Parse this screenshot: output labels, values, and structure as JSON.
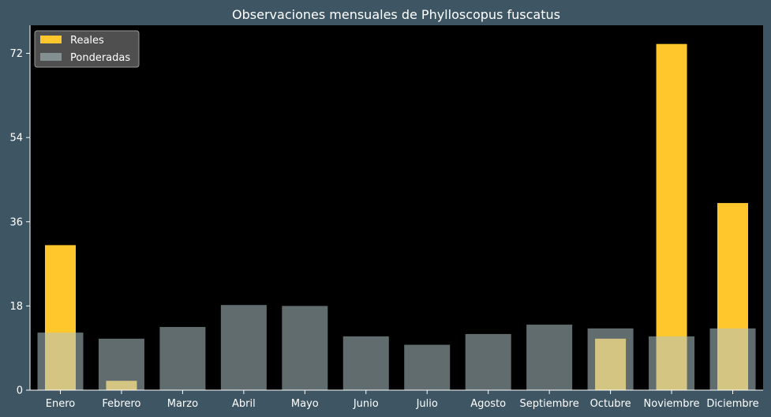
{
  "chart_data": {
    "type": "bar",
    "title": "Observaciones mensuales de Phylloscopus fuscatus",
    "categories": [
      "Enero",
      "Febrero",
      "Marzo",
      "Abril",
      "Mayo",
      "Junio",
      "Julio",
      "Agosto",
      "Septiembre",
      "Octubre",
      "Noviembre",
      "Diciembre"
    ],
    "series": [
      {
        "name": "Reales",
        "color": "#ffc72c",
        "values": [
          31,
          2,
          0,
          0,
          0,
          0,
          0,
          0,
          0,
          11,
          74,
          40
        ]
      },
      {
        "name": "Ponderadas",
        "color": "#b0c4cb",
        "opacity": 0.55,
        "values": [
          12.3,
          11,
          13.5,
          18.2,
          18,
          11.5,
          9.7,
          12,
          14,
          13.2,
          11.5,
          13.2
        ]
      }
    ],
    "yticks": [
      0,
      18,
      36,
      54,
      72
    ],
    "ylim": [
      0,
      78
    ],
    "xlabel": "",
    "ylabel": "",
    "legend_position": "top-left",
    "grid": false,
    "plot_background": "#000000",
    "figure_background": "#3e5563"
  }
}
